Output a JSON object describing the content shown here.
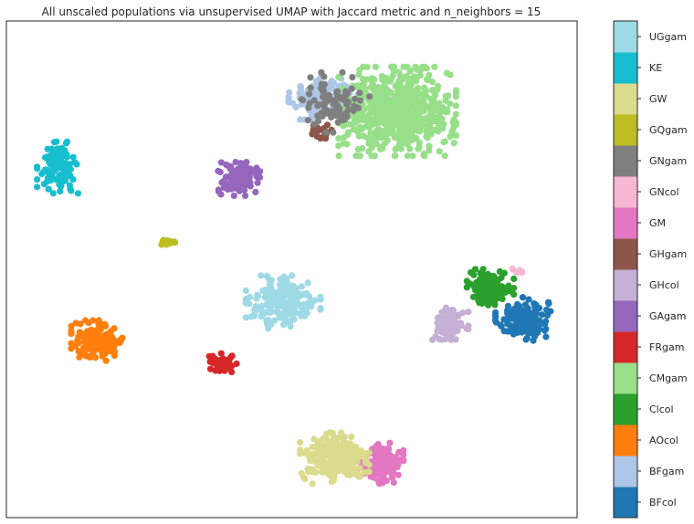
{
  "chart_data": {
    "type": "scatter",
    "title": "All unscaled populations via unsupervised UMAP with Jaccard metric and n_neighbors = 15",
    "xlabel": "",
    "ylabel": "",
    "xlim": [
      0,
      100
    ],
    "ylim": [
      0,
      100
    ],
    "axis_ticks": false,
    "grid": false,
    "colorbar": {
      "position": "right",
      "labels": [
        "BFcol",
        "BFgam",
        "AOcol",
        "Clcol",
        "CMgam",
        "FRgam",
        "GAgam",
        "GHcol",
        "GHgam",
        "GM",
        "GNcol",
        "GNgam",
        "GQgam",
        "GW",
        "KE",
        "UGgam"
      ],
      "colors": [
        "#1f77b4",
        "#aec7e8",
        "#ff7f0e",
        "#2ca02c",
        "#98df8a",
        "#d62728",
        "#9467bd",
        "#c5b0d5",
        "#8c564b",
        "#e377c2",
        "#f7b6d2",
        "#7f7f7f",
        "#bcbd22",
        "#dbdb8d",
        "#17becf",
        "#9edae5"
      ]
    },
    "series": [
      {
        "name": "BFcol",
        "color": "#1f77b4",
        "points": 150,
        "center": [
          90.5,
          40.0
        ],
        "spread": [
          4.0,
          3.6
        ]
      },
      {
        "name": "BFgam",
        "color": "#aec7e8",
        "points": 150,
        "center": [
          55.5,
          84.5
        ],
        "spread": [
          5.0,
          3.6
        ]
      },
      {
        "name": "AOcol",
        "color": "#ff7f0e",
        "points": 160,
        "center": [
          16.2,
          35.6
        ],
        "spread": [
          4.0,
          3.4
        ]
      },
      {
        "name": "Clcol",
        "color": "#2ca02c",
        "points": 140,
        "center": [
          84.8,
          46.4
        ],
        "spread": [
          3.4,
          3.0
        ]
      },
      {
        "name": "CMgam",
        "color": "#98df8a",
        "points": 650,
        "center": [
          68.5,
          81.8
        ],
        "spread": [
          8.5,
          7.4
        ]
      },
      {
        "name": "FRgam",
        "color": "#d62728",
        "points": 45,
        "center": [
          37.8,
          31.0
        ],
        "spread": [
          2.1,
          1.7
        ]
      },
      {
        "name": "GAgam",
        "color": "#9467bd",
        "points": 110,
        "center": [
          40.8,
          68.2
        ],
        "spread": [
          3.4,
          2.8
        ]
      },
      {
        "name": "GHcol",
        "color": "#c5b0d5",
        "points": 90,
        "center": [
          77.8,
          39.2
        ],
        "spread": [
          2.6,
          2.8
        ]
      },
      {
        "name": "GHgam",
        "color": "#8c564b",
        "points": 22,
        "center": [
          55.3,
          77.8
        ],
        "spread": [
          1.4,
          1.2
        ]
      },
      {
        "name": "GM",
        "color": "#e377c2",
        "points": 140,
        "center": [
          65.7,
          10.8
        ],
        "spread": [
          3.2,
          3.5
        ]
      },
      {
        "name": "GNcol",
        "color": "#f7b6d2",
        "points": 10,
        "center": [
          90.0,
          49.4
        ],
        "spread": [
          1.1,
          0.8
        ]
      },
      {
        "name": "GNgam",
        "color": "#7f7f7f",
        "points": 90,
        "center": [
          57.0,
          83.6
        ],
        "spread": [
          5.5,
          5.0
        ]
      },
      {
        "name": "GQgam",
        "color": "#bcbd22",
        "points": 14,
        "center": [
          28.4,
          55.4
        ],
        "spread": [
          1.0,
          0.8
        ]
      },
      {
        "name": "GW",
        "color": "#dbdb8d",
        "points": 250,
        "center": [
          57.5,
          12.0
        ],
        "spread": [
          5.0,
          4.3
        ]
      },
      {
        "name": "KE",
        "color": "#17becf",
        "points": 110,
        "center": [
          9.0,
          70.5
        ],
        "spread": [
          3.0,
          4.3
        ]
      },
      {
        "name": "UGgam",
        "color": "#9edae5",
        "points": 200,
        "center": [
          48.5,
          43.4
        ],
        "spread": [
          5.4,
          4.4
        ]
      }
    ]
  }
}
